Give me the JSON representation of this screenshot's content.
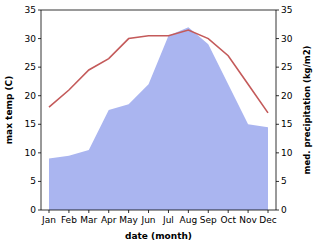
{
  "chart_data": {
    "type": "line",
    "x_label": "date (month)",
    "y_label": "max temp (C)",
    "y2_label": "med. precipitation (kg/m2)",
    "categories": [
      "Jan",
      "Feb",
      "Mar",
      "Apr",
      "May",
      "Jun",
      "Jul",
      "Aug",
      "Sep",
      "Oct",
      "Nov",
      "Dec"
    ],
    "ylim": [
      0,
      35
    ],
    "yticks": [
      0,
      5,
      10,
      15,
      20,
      25,
      30,
      35
    ],
    "y2lim": [
      0,
      35
    ],
    "y2ticks": [
      0,
      5,
      10,
      15,
      20,
      25,
      30,
      35
    ],
    "grid": false,
    "series": [
      {
        "name": "med. precipitation",
        "type": "area",
        "axis": "y2",
        "color": "#aab5f0",
        "values": [
          9,
          9.5,
          10.5,
          17.5,
          18.5,
          22,
          30.5,
          32,
          29,
          22,
          15,
          14.5
        ]
      },
      {
        "name": "max temp",
        "type": "line",
        "axis": "y",
        "color": "#c45a5a",
        "values": [
          18,
          21,
          24.5,
          26.5,
          30,
          30.5,
          30.5,
          31.5,
          30,
          27,
          22,
          17
        ]
      }
    ]
  }
}
